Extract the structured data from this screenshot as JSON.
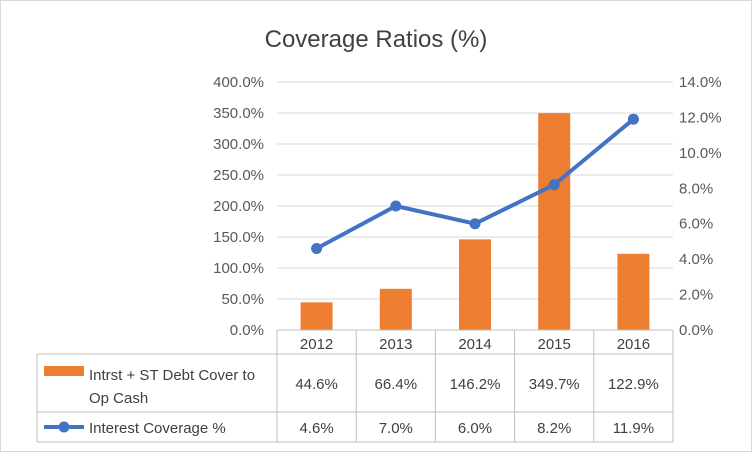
{
  "chart_data": {
    "type": "bar",
    "title": "Coverage Ratios (%)",
    "categories": [
      "2012",
      "2013",
      "2014",
      "2015",
      "2016"
    ],
    "y_left": {
      "ylim": [
        0,
        400
      ],
      "ticks": [
        "0.0%",
        "50.0%",
        "100.0%",
        "150.0%",
        "200.0%",
        "250.0%",
        "300.0%",
        "350.0%",
        "400.0%"
      ]
    },
    "y_right": {
      "ylim": [
        0,
        14
      ],
      "ticks": [
        "0.0%",
        "2.0%",
        "4.0%",
        "6.0%",
        "8.0%",
        "10.0%",
        "12.0%",
        "14.0%"
      ]
    },
    "series": [
      {
        "name": "Intrst + ST Debt Cover to Op Cash",
        "type": "bar",
        "axis": "left",
        "color": "#ED7D31",
        "values": [
          44.6,
          66.4,
          146.2,
          349.7,
          122.9
        ],
        "labels": [
          "44.6%",
          "66.4%",
          "146.2%",
          "349.7%",
          "122.9%"
        ]
      },
      {
        "name": "Interest Coverage %",
        "type": "line",
        "axis": "right",
        "color": "#4472C4",
        "values": [
          4.6,
          7.0,
          6.0,
          8.2,
          11.9
        ],
        "labels": [
          "4.6%",
          "7.0%",
          "6.0%",
          "8.2%",
          "11.9%"
        ]
      }
    ],
    "legend": "data-table",
    "grid": true
  }
}
